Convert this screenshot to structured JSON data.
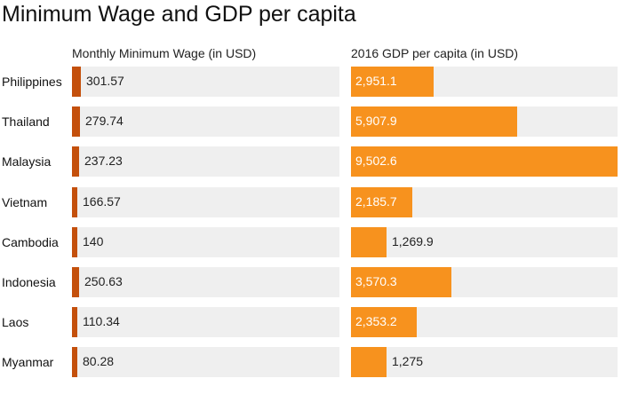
{
  "chart_data": {
    "type": "bar",
    "title": "Minimum Wage and GDP per capita",
    "categories": [
      "Philippines",
      "Thailand",
      "Malaysia",
      "Vietnam",
      "Cambodia",
      "Indonesia",
      "Laos",
      "Myanmar"
    ],
    "series": [
      {
        "name": "Monthly Minimum Wage (in USD)",
        "values": [
          301.57,
          279.74,
          237.23,
          166.57,
          140,
          250.63,
          110.34,
          80.28
        ],
        "labels": [
          "301.57",
          "279.74",
          "237.23",
          "166.57",
          "140",
          "250.63",
          "110.34",
          "80.28"
        ],
        "color": "#c4500c",
        "max": 9502.6
      },
      {
        "name": "2016 GDP per capita (in USD)",
        "values": [
          2951.1,
          5907.9,
          9502.6,
          2185.7,
          1269.9,
          3570.3,
          2353.2,
          1275
        ],
        "labels": [
          "2,951.1",
          "5,907.9",
          "9,502.6",
          "2,185.7",
          "1,269.9",
          "3,570.3",
          "2,353.2",
          "1,275"
        ],
        "color": "#f7921e",
        "max": 9502.6
      }
    ],
    "track_color": "#efefef"
  }
}
